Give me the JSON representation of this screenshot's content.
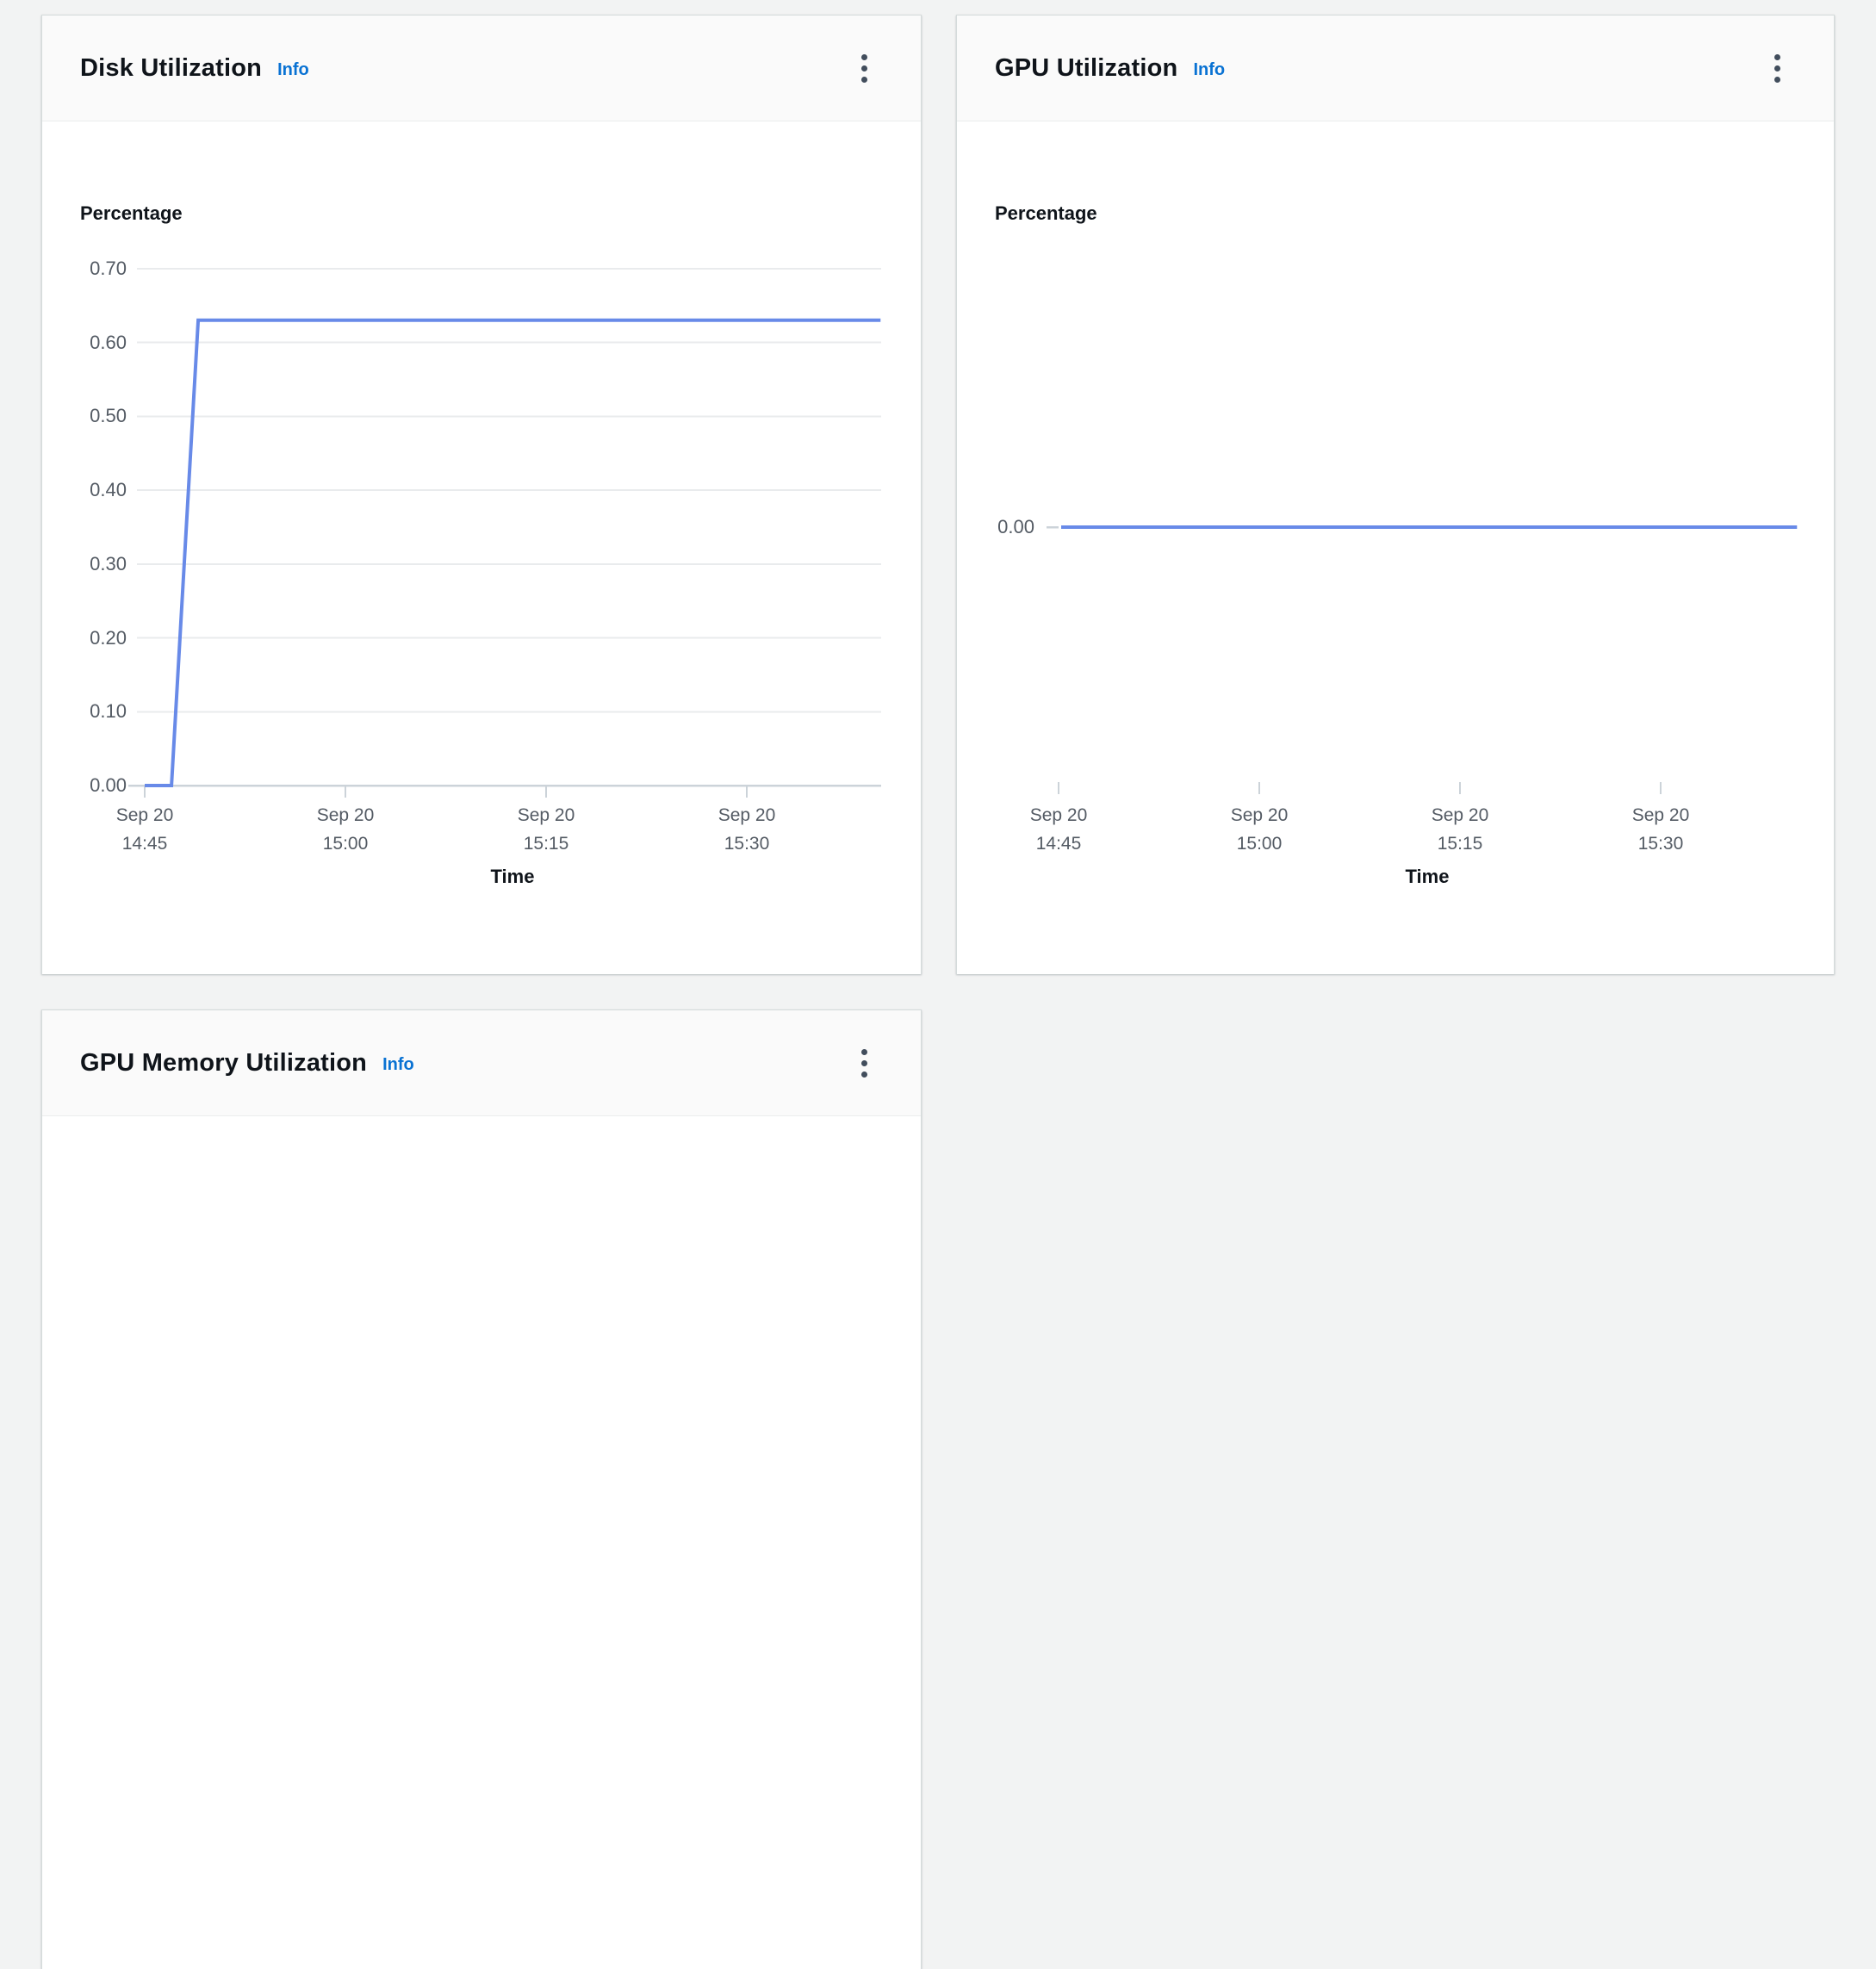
{
  "panels": [
    {
      "title": "Disk Utilization",
      "info_label": "Info",
      "menu_icon": "kebab-menu-icon"
    },
    {
      "title": "GPU Utilization",
      "info_label": "Info",
      "menu_icon": "kebab-menu-icon"
    },
    {
      "title": "GPU Memory Utilization",
      "info_label": "Info",
      "menu_icon": "kebab-menu-icon"
    }
  ],
  "colors": {
    "series_line": "#688ae8",
    "info_link": "#0972d3",
    "axis_text": "#545b64",
    "gridline": "#e9ebed",
    "axis_line": "#ccd3d9",
    "title_text": "#0f141a",
    "panel_header_bg": "#fafafa",
    "panel_border": "#d5dbdb",
    "page_bg": "#f2f3f3"
  },
  "chart_data": [
    {
      "id": "disk",
      "type": "line",
      "title": "Disk Utilization",
      "ylabel": "Percentage",
      "xlabel": "Time",
      "ylim": [
        0.0,
        0.75
      ],
      "grid": true,
      "legend_position": "none",
      "yticks": [
        "0.00",
        "0.10",
        "0.20",
        "0.30",
        "0.40",
        "0.50",
        "0.60",
        "0.70"
      ],
      "xticks": [
        {
          "date": "Sep 20",
          "time": "14:45"
        },
        {
          "date": "Sep 20",
          "time": "15:00"
        },
        {
          "date": "Sep 20",
          "time": "15:15"
        },
        {
          "date": "Sep 20",
          "time": "15:30"
        }
      ],
      "series": [
        {
          "name": "Disk Utilization",
          "color": "#688ae8",
          "points": [
            {
              "t": "14:45",
              "v": 0.0
            },
            {
              "t": "14:47",
              "v": 0.0
            },
            {
              "t": "14:49",
              "v": 0.63
            },
            {
              "t": "15:40",
              "v": 0.63
            }
          ]
        }
      ]
    },
    {
      "id": "gpu",
      "type": "line",
      "title": "GPU Utilization",
      "ylabel": "Percentage",
      "xlabel": "Time",
      "ylim": [
        0.0,
        0.75
      ],
      "grid": false,
      "legend_position": "none",
      "yticks": [
        "0.00"
      ],
      "xticks": [
        {
          "date": "Sep 20",
          "time": "14:45"
        },
        {
          "date": "Sep 20",
          "time": "15:00"
        },
        {
          "date": "Sep 20",
          "time": "15:15"
        },
        {
          "date": "Sep 20",
          "time": "15:30"
        }
      ],
      "series": [
        {
          "name": "GPU Utilization",
          "color": "#688ae8",
          "points": [
            {
              "t": "14:45",
              "v": 0.0
            },
            {
              "t": "15:40",
              "v": 0.0
            }
          ]
        }
      ]
    }
  ]
}
